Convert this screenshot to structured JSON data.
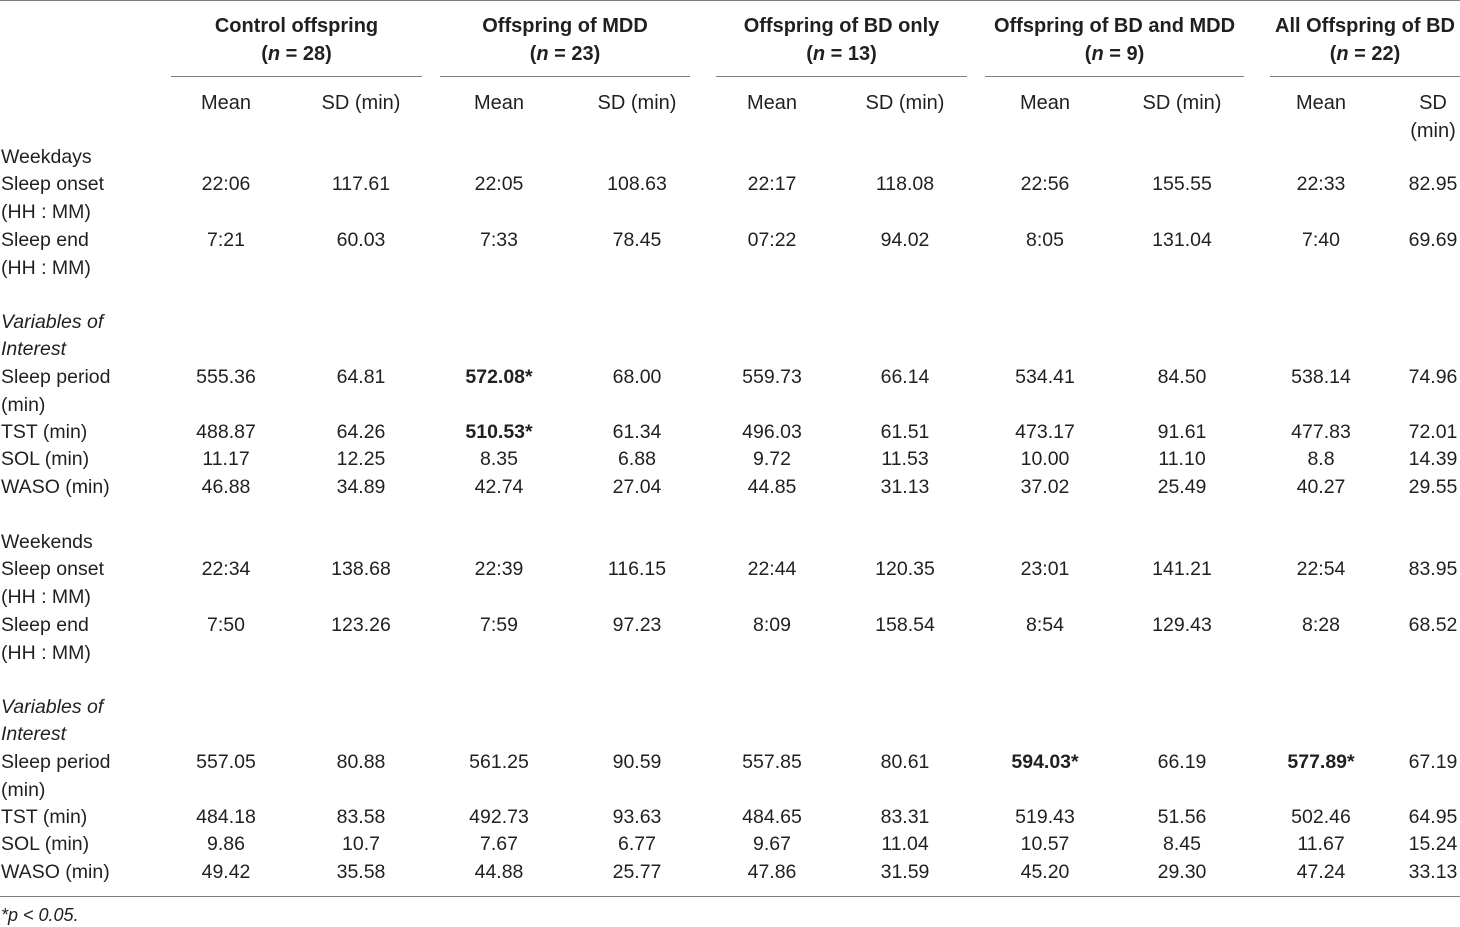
{
  "table": {
    "groups": [
      {
        "title": "Control offspring",
        "n_text": "n",
        "n_rest": " = 28)"
      },
      {
        "title": "Offspring of MDD",
        "n_text": "n",
        "n_rest": " = 23)"
      },
      {
        "title": "Offspring of BD only",
        "n_text": "n",
        "n_rest": " = 13)"
      },
      {
        "title": "Offspring of BD and MDD",
        "n_text": "n",
        "n_rest": " = 9)"
      },
      {
        "title": "All Offspring of BD",
        "n_text": "n",
        "n_rest": " = 22)"
      }
    ],
    "subheaders": {
      "mean": "Mean",
      "sd": "SD (min)",
      "sd_wrapped_1": "SD",
      "sd_wrapped_2": "(min)"
    },
    "sections": {
      "weekdays": "Weekdays",
      "weekends": "Weekends",
      "voi_1": "Variables of",
      "voi_2": "Interest"
    },
    "rows": [
      {
        "label1": "Sleep onset",
        "label2": "(HH : MM)",
        "values": [
          "22:06",
          "117.61",
          "22:05",
          "108.63",
          "22:17",
          "118.08",
          "22:56",
          "155.55",
          "22:33",
          "82.95"
        ],
        "bold": []
      },
      {
        "label1": "Sleep end",
        "label2": "(HH : MM)",
        "values": [
          "7:21",
          "60.03",
          "7:33",
          "78.45",
          "07:22",
          "94.02",
          "8:05",
          "131.04",
          "7:40",
          "69.69"
        ],
        "bold": []
      },
      {
        "label1": "Sleep period",
        "label2": "(min)",
        "values": [
          "555.36",
          "64.81",
          "572.08*",
          "68.00",
          "559.73",
          "66.14",
          "534.41",
          "84.50",
          "538.14",
          "74.96"
        ],
        "bold": [
          2
        ]
      },
      {
        "label1": "TST (min)",
        "label2": "",
        "values": [
          "488.87",
          "64.26",
          "510.53*",
          "61.34",
          "496.03",
          "61.51",
          "473.17",
          "91.61",
          "477.83",
          "72.01"
        ],
        "bold": [
          2
        ]
      },
      {
        "label1": "SOL (min)",
        "label2": "",
        "values": [
          "11.17",
          "12.25",
          "8.35",
          "6.88",
          "9.72",
          "11.53",
          "10.00",
          "11.10",
          "8.8",
          "14.39"
        ],
        "bold": []
      },
      {
        "label1": "WASO (min)",
        "label2": "",
        "values": [
          "46.88",
          "34.89",
          "42.74",
          "27.04",
          "44.85",
          "31.13",
          "37.02",
          "25.49",
          "40.27",
          "29.55"
        ],
        "bold": []
      },
      {
        "label1": "Sleep onset",
        "label2": "(HH : MM)",
        "values": [
          "22:34",
          "138.68",
          "22:39",
          "116.15",
          "22:44",
          "120.35",
          "23:01",
          "141.21",
          "22:54",
          "83.95"
        ],
        "bold": []
      },
      {
        "label1": "Sleep end",
        "label2": "(HH : MM)",
        "values": [
          "7:50",
          "123.26",
          "7:59",
          "97.23",
          "8:09",
          "158.54",
          "8:54",
          "129.43",
          "8:28",
          "68.52"
        ],
        "bold": []
      },
      {
        "label1": "Sleep period",
        "label2": "(min)",
        "values": [
          "557.05",
          "80.88",
          "561.25",
          "90.59",
          "557.85",
          "80.61",
          "594.03*",
          "66.19",
          "577.89*",
          "67.19"
        ],
        "bold": [
          6,
          8
        ]
      },
      {
        "label1": "TST (min)",
        "label2": "",
        "values": [
          "484.18",
          "83.58",
          "492.73",
          "93.63",
          "484.65",
          "83.31",
          "519.43",
          "51.56",
          "502.46",
          "64.95"
        ],
        "bold": []
      },
      {
        "label1": "SOL (min)",
        "label2": "",
        "values": [
          "9.86",
          "10.7",
          "7.67",
          "6.77",
          "9.67",
          "11.04",
          "10.57",
          "8.45",
          "11.67",
          "15.24"
        ],
        "bold": []
      },
      {
        "label1": "WASO (min)",
        "label2": "",
        "values": [
          "49.42",
          "35.58",
          "44.88",
          "25.77",
          "47.86",
          "31.59",
          "45.20",
          "29.30",
          "47.24",
          "33.13"
        ],
        "bold": []
      }
    ],
    "footnote": "*p < 0.05."
  }
}
